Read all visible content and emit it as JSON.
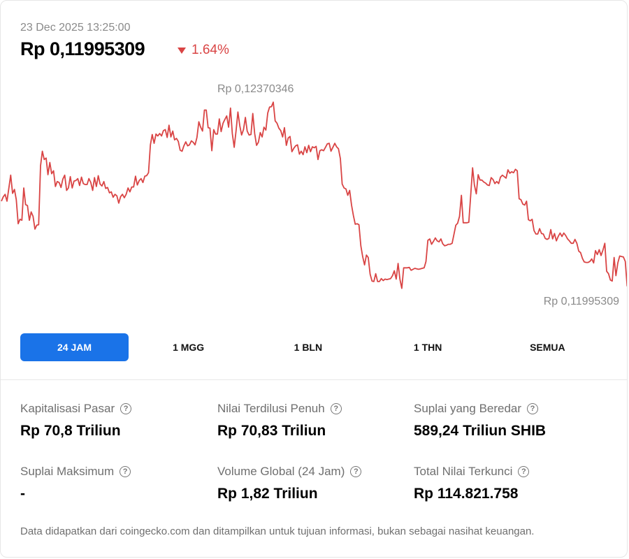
{
  "header": {
    "timestamp": "23 Dec 2025 13:25:00",
    "price": "Rp 0,11995309",
    "change": "1.64%",
    "change_color": "#d94444"
  },
  "chart_data": {
    "type": "line",
    "title": "",
    "xlabel": "",
    "ylabel": "",
    "high_label": "Rp 0,12370346",
    "low_label": "Rp 0,11995309",
    "line_color": "#d94444",
    "ylim": [
      0.11995309,
      0.12370346
    ],
    "series": [
      {
        "values": [
          0.12168,
          0.12177,
          0.12182,
          0.12168,
          0.12195,
          0.12221,
          0.12184,
          0.12192,
          0.12171,
          0.12122,
          0.12131,
          0.12129,
          0.12195,
          0.12161,
          0.12159,
          0.12129,
          0.12146,
          0.12137,
          0.12111,
          0.12119,
          0.1212,
          0.1224,
          0.1227,
          0.12253,
          0.12256,
          0.12222,
          0.12247,
          0.12224,
          0.1223,
          0.12198,
          0.12208,
          0.12206,
          0.12196,
          0.12213,
          0.12221,
          0.1219,
          0.12195,
          0.12218,
          0.12195,
          0.12209,
          0.1221,
          0.12214,
          0.122,
          0.12217,
          0.12204,
          0.12202,
          0.12202,
          0.12214,
          0.12206,
          0.1219,
          0.12216,
          0.12198,
          0.1222,
          0.12203,
          0.12199,
          0.12208,
          0.12194,
          0.12196,
          0.12185,
          0.12187,
          0.12176,
          0.12182,
          0.12179,
          0.12164,
          0.12177,
          0.12182,
          0.12175,
          0.12182,
          0.12195,
          0.12187,
          0.12197,
          0.12197,
          0.12219,
          0.12201,
          0.1221,
          0.12214,
          0.12206,
          0.12219,
          0.1222,
          0.12226,
          0.12283,
          0.12304,
          0.12286,
          0.12305,
          0.12301,
          0.12306,
          0.12301,
          0.12312,
          0.12314,
          0.12298,
          0.12323,
          0.12299,
          0.12311,
          0.12293,
          0.12296,
          0.1229,
          0.12272,
          0.1227,
          0.12281,
          0.12289,
          0.12281,
          0.12283,
          0.12291,
          0.12288,
          0.12283,
          0.12298,
          0.1233,
          0.12319,
          0.12311,
          0.12354,
          0.12354,
          0.12318,
          0.12317,
          0.12271,
          0.12314,
          0.12305,
          0.12305,
          0.12336,
          0.1231,
          0.12327,
          0.12335,
          0.12342,
          0.12319,
          0.12358,
          0.12306,
          0.12278,
          0.12312,
          0.1235,
          0.12322,
          0.12303,
          0.12314,
          0.12339,
          0.12311,
          0.12303,
          0.12304,
          0.12347,
          0.12306,
          0.12282,
          0.12288,
          0.12308,
          0.12299,
          0.12319,
          0.12313,
          0.12348,
          0.1236,
          0.12361,
          0.1237,
          0.12332,
          0.12327,
          0.12317,
          0.12312,
          0.12299,
          0.12318,
          0.12282,
          0.12297,
          0.123,
          0.12269,
          0.12276,
          0.12281,
          0.12283,
          0.12264,
          0.1227,
          0.12263,
          0.12279,
          0.12267,
          0.12282,
          0.12269,
          0.12279,
          0.12277,
          0.1228,
          0.12253,
          0.12271,
          0.12273,
          0.12271,
          0.12278,
          0.12285,
          0.12286,
          0.1227,
          0.12278,
          0.12286,
          0.12279,
          0.12275,
          0.12255,
          0.12203,
          0.12195,
          0.12193,
          0.1218,
          0.1219,
          0.1216,
          0.12139,
          0.12121,
          0.12122,
          0.1212,
          0.12077,
          0.12055,
          0.12038,
          0.12058,
          0.12053,
          0.12019,
          0.12005,
          0.12004,
          0.1202,
          0.12004,
          0.12004,
          0.1201,
          0.12006,
          0.12009,
          0.12008,
          0.12009,
          0.1201,
          0.12016,
          0.12026,
          0.12009,
          0.12041,
          0.12009,
          0.1199,
          0.12032,
          0.12032,
          0.12032,
          0.12033,
          0.12027,
          0.12029,
          0.12031,
          0.1203,
          0.12029,
          0.1203,
          0.12031,
          0.12032,
          0.12045,
          0.12088,
          0.12091,
          0.1208,
          0.12086,
          0.12093,
          0.12087,
          0.12085,
          0.12091,
          0.12081,
          0.12077,
          0.12078,
          0.1208,
          0.1208,
          0.12082,
          0.121,
          0.12119,
          0.12123,
          0.12137,
          0.1218,
          0.12124,
          0.12124,
          0.12124,
          0.12125,
          0.1218,
          0.12236,
          0.12201,
          0.12183,
          0.12222,
          0.12211,
          0.12211,
          0.12207,
          0.12205,
          0.12201,
          0.122,
          0.12216,
          0.12212,
          0.12204,
          0.12208,
          0.12204,
          0.12217,
          0.12221,
          0.12218,
          0.12215,
          0.12232,
          0.12225,
          0.12228,
          0.12226,
          0.12233,
          0.1223,
          0.12173,
          0.12171,
          0.12162,
          0.1216,
          0.12168,
          0.1213,
          0.12128,
          0.12131,
          0.12108,
          0.12101,
          0.12101,
          0.12112,
          0.12102,
          0.12101,
          0.12092,
          0.1209,
          0.12092,
          0.1211,
          0.12091,
          0.12102,
          0.12087,
          0.12096,
          0.12103,
          0.12096,
          0.12103,
          0.12098,
          0.12091,
          0.12087,
          0.12082,
          0.12082,
          0.1209,
          0.12082,
          0.12066,
          0.12063,
          0.12051,
          0.12044,
          0.12043,
          0.12043,
          0.12045,
          0.1205,
          0.12042,
          0.12067,
          0.12059,
          0.12069,
          0.12057,
          0.12068,
          0.12082,
          0.12025,
          0.1202,
          0.12007,
          0.12005,
          0.12053,
          0.12016,
          0.12042,
          0.12056,
          0.12055,
          0.12054,
          0.12045,
          0.11995,
          0.11995
        ]
      }
    ]
  },
  "ranges": [
    {
      "label": "24 JAM",
      "active": true
    },
    {
      "label": "1 MGG",
      "active": false
    },
    {
      "label": "1 BLN",
      "active": false
    },
    {
      "label": "1 THN",
      "active": false
    },
    {
      "label": "SEMUA",
      "active": false
    }
  ],
  "stats": {
    "market_cap": {
      "label": "Kapitalisasi Pasar",
      "value": "Rp 70,8 Triliun"
    },
    "fdv": {
      "label": "Nilai Terdilusi Penuh",
      "value": "Rp 70,83 Triliun"
    },
    "circ_supply": {
      "label": "Suplai yang Beredar",
      "value": "589,24 Triliun SHIB"
    },
    "max_supply": {
      "label": "Suplai Maksimum",
      "value": "-"
    },
    "volume": {
      "label": "Volume Global (24 Jam)",
      "value": "Rp 1,82 Triliun"
    },
    "tvl": {
      "label": "Total Nilai Terkunci",
      "value": "Rp 114.821.758"
    }
  },
  "info_icon_glyph": "?",
  "accent_color": "#1a73e8",
  "footer": "Data didapatkan dari coingecko.com dan ditampilkan untuk tujuan informasi, bukan sebagai nasihat keuangan."
}
